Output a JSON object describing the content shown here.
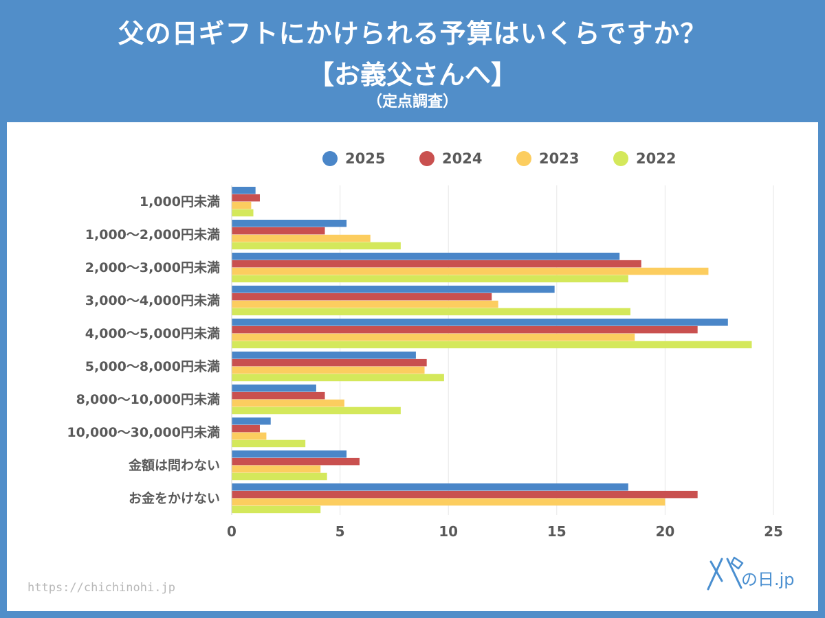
{
  "header": {
    "title_line1": "父の日ギフトにかけられる予算はいくらですか？",
    "title_line2": "【お義父さんへ】",
    "subtitle": "（定点調査）"
  },
  "footer": {
    "source_url": "https://chichinohi.jp",
    "logo_text": "の日.jp"
  },
  "colors": {
    "background": "#518ec9",
    "panel": "#ffffff",
    "s2025": "#4a86c8",
    "s2024": "#c9504f",
    "s2023": "#fccd5f",
    "s2022": "#d4e85b",
    "grid": "#e6e6e6",
    "label": "#595959"
  },
  "chart_data": {
    "type": "bar",
    "orientation": "horizontal",
    "title": "父の日ギフトにかけられる予算はいくらですか？【お義父さんへ】",
    "categories": [
      "1,000円未満",
      "1,000〜2,000円未満",
      "2,000〜3,000円未満",
      "3,000〜4,000円未満",
      "4,000〜5,000円未満",
      "5,000〜8,000円未満",
      "8,000〜10,000円未満",
      "10,000〜30,000円未満",
      "金額は問わない",
      "お金をかけない"
    ],
    "series": [
      {
        "name": "2025",
        "color": "#4a86c8",
        "values": [
          1.1,
          5.3,
          17.9,
          14.9,
          22.9,
          8.5,
          3.9,
          1.8,
          5.3,
          18.3
        ]
      },
      {
        "name": "2024",
        "color": "#c9504f",
        "values": [
          1.3,
          4.3,
          18.9,
          12.0,
          21.5,
          9.0,
          4.3,
          1.3,
          5.9,
          21.5
        ]
      },
      {
        "name": "2023",
        "color": "#fccd5f",
        "values": [
          0.9,
          6.4,
          22.0,
          12.3,
          18.6,
          8.9,
          5.2,
          1.6,
          4.1,
          20.0
        ]
      },
      {
        "name": "2022",
        "color": "#d4e85b",
        "values": [
          1.0,
          7.8,
          18.3,
          18.4,
          24.0,
          9.8,
          7.8,
          3.4,
          4.4,
          4.1
        ]
      }
    ],
    "xlim": [
      0,
      25
    ],
    "xticks": [
      "0",
      "5",
      "10",
      "15",
      "20",
      "25"
    ],
    "xtick_values": [
      0,
      5,
      10,
      15,
      20,
      25
    ],
    "grid": true,
    "legend_position": "top"
  }
}
